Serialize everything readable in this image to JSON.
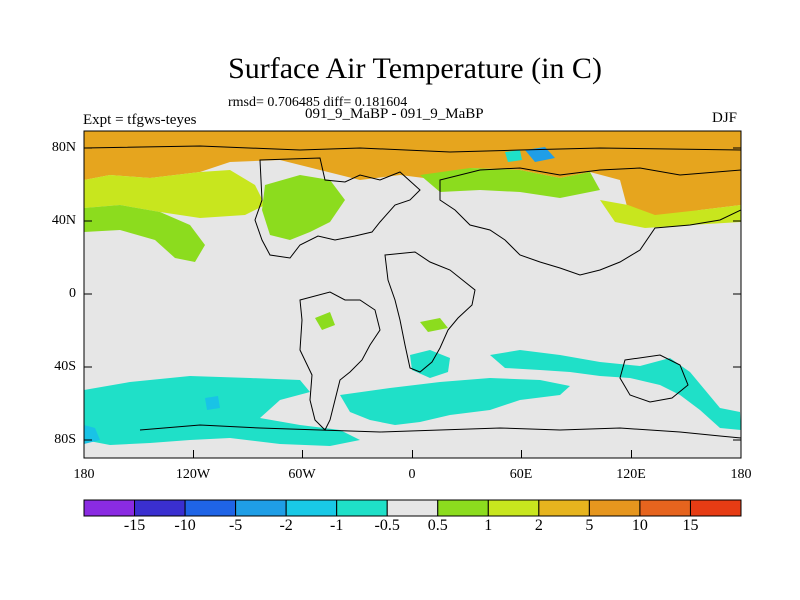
{
  "map": {
    "title": "Surface Air Temperature (in C)",
    "stats": "rmsd= 0.706485 diff= 0.181604",
    "subtitle": "091_9_MaBP - 091_9_MaBP",
    "experiment": "Expt = tfgws-teyes",
    "season": "DJF",
    "lat_ticks": [
      "80N",
      "40N",
      "0",
      "40S",
      "80S"
    ],
    "lon_ticks": [
      "180",
      "120W",
      "60W",
      "0",
      "60E",
      "120E",
      "180"
    ]
  },
  "colorbar": {
    "labels": [
      "-15",
      "-10",
      "-5",
      "-2",
      "-1",
      "-0.5",
      "0.5",
      "1",
      "2",
      "5",
      "10",
      "15"
    ],
    "colors": [
      "#8a2be2",
      "#3a2fd0",
      "#1f64e6",
      "#1f9ee6",
      "#19c9e6",
      "#1fe0c8",
      "#e6e6e6",
      "#8cdc1e",
      "#c8e61e",
      "#e6b41e",
      "#e6961e",
      "#e6641e",
      "#e63c14"
    ]
  },
  "palette": {
    "land_neutral": "#e6e6e6",
    "warm_orange": "#e6a51e",
    "yellow_green": "#c8e61e",
    "green": "#8cdc1e",
    "cyan": "#1fe0c8",
    "blue": "#19c3e6"
  }
}
